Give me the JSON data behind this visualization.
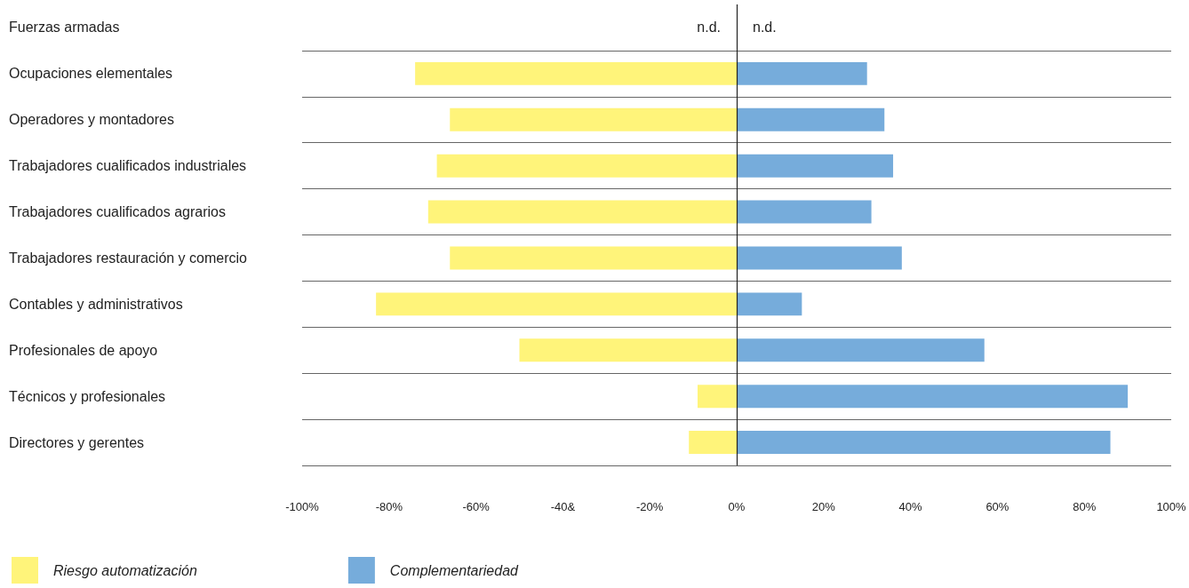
{
  "chart_data": {
    "type": "bar",
    "orientation": "horizontal",
    "stacked": true,
    "categories": [
      "Fuerzas armadas",
      "Ocupaciones elementales",
      "Operadores y montadores",
      "Trabajadores cualificados industriales",
      "Trabajadores cualificados agrarios",
      "Trabajadores restauración y comercio",
      "Contables y administrativos",
      "Profesionales de apoyo",
      "Técnicos y profesionales",
      "Directores y gerentes"
    ],
    "series": [
      {
        "name": "Riesgo automatización",
        "color": "#fff47a",
        "values": [
          null,
          -74,
          -66,
          -69,
          -71,
          -66,
          -83,
          -50,
          -9,
          -11
        ],
        "value_labels": [
          "n.d.",
          null,
          null,
          null,
          null,
          null,
          null,
          null,
          null,
          null
        ]
      },
      {
        "name": "Complementariedad",
        "color": "#76acdb",
        "values": [
          null,
          30,
          34,
          36,
          31,
          38,
          15,
          57,
          90,
          86
        ],
        "value_labels": [
          "n.d.",
          null,
          null,
          null,
          null,
          null,
          null,
          null,
          null,
          null
        ]
      }
    ],
    "xlim": [
      -100,
      100
    ],
    "xticks": [
      {
        "value": -100,
        "label": "-100%"
      },
      {
        "value": -80,
        "label": "-80%"
      },
      {
        "value": -60,
        "label": "-60%"
      },
      {
        "value": -40,
        "label": "-40&"
      },
      {
        "value": -20,
        "label": "-20%"
      },
      {
        "value": 0,
        "label": "0%"
      },
      {
        "value": 20,
        "label": "20%"
      },
      {
        "value": 40,
        "label": "40%"
      },
      {
        "value": 60,
        "label": "60%"
      },
      {
        "value": 80,
        "label": "80%"
      },
      {
        "value": 100,
        "label": "100%"
      }
    ],
    "ref_lines": [
      {
        "axis": "x",
        "value": 0,
        "color": "#222222"
      }
    ],
    "grid": "y",
    "legend": "bottom left"
  }
}
